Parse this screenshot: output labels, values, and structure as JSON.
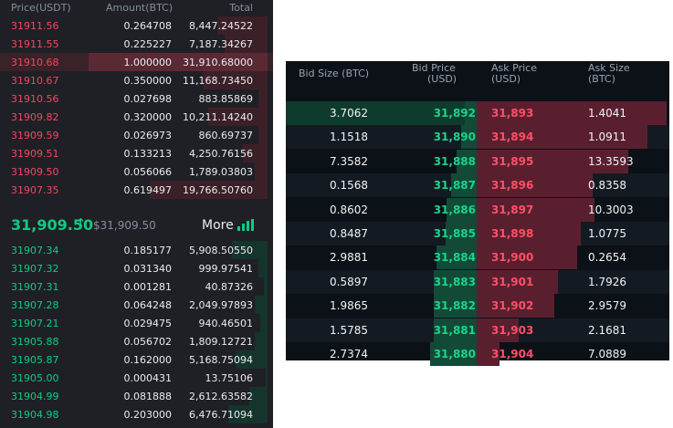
{
  "order_book": {
    "headers": {
      "price": "Price(USDT)",
      "amount": "Amount(BTC)",
      "total": "Total"
    },
    "asks": [
      {
        "price": "31911.56",
        "amount": "0.264708",
        "total": "8,447.24522",
        "depth": 0.28
      },
      {
        "price": "31911.55",
        "amount": "0.225227",
        "total": "7,187.34267",
        "depth": 0.24
      },
      {
        "price": "31910.68",
        "amount": "1.000000",
        "total": "31,910.68000",
        "depth": 1.0,
        "highlight": true
      },
      {
        "price": "31910.67",
        "amount": "0.350000",
        "total": "11,168.73450",
        "depth": 0.36
      },
      {
        "price": "31910.56",
        "amount": "0.027698",
        "total": "883.85869",
        "depth": 0.05
      },
      {
        "price": "31909.82",
        "amount": "0.320000",
        "total": "10,211.14240",
        "depth": 0.33
      },
      {
        "price": "31909.59",
        "amount": "0.026973",
        "total": "860.69737",
        "depth": 0.05
      },
      {
        "price": "31909.51",
        "amount": "0.133213",
        "total": "4,250.76156",
        "depth": 0.14
      },
      {
        "price": "31909.50",
        "amount": "0.056066",
        "total": "1,789.03803",
        "depth": 0.07
      },
      {
        "price": "31907.35",
        "amount": "0.619497",
        "total": "19,766.50760",
        "depth": 0.66
      }
    ],
    "mid": {
      "price": "31,909.50",
      "arrow": "↑",
      "usd": "$31,909.50",
      "more": "More"
    },
    "bids": [
      {
        "price": "31907.34",
        "amount": "0.185177",
        "total": "5,908.50550",
        "depth": 0.2
      },
      {
        "price": "31907.32",
        "amount": "0.031340",
        "total": "999.97541",
        "depth": 0.05
      },
      {
        "price": "31907.31",
        "amount": "0.001281",
        "total": "40.87326",
        "depth": 0.02
      },
      {
        "price": "31907.28",
        "amount": "0.064248",
        "total": "2,049.97893",
        "depth": 0.07
      },
      {
        "price": "31907.21",
        "amount": "0.029475",
        "total": "940.46501",
        "depth": 0.04
      },
      {
        "price": "31905.88",
        "amount": "0.056702",
        "total": "1,809.12721",
        "depth": 0.07
      },
      {
        "price": "31905.87",
        "amount": "0.162000",
        "total": "5,168.75094",
        "depth": 0.18
      },
      {
        "price": "31905.00",
        "amount": "0.000431",
        "total": "13.75106",
        "depth": 0.01
      },
      {
        "price": "31904.99",
        "amount": "0.081888",
        "total": "2,612.63582",
        "depth": 0.1
      },
      {
        "price": "31904.98",
        "amount": "0.203000",
        "total": "6,476.71094",
        "depth": 0.22
      }
    ]
  },
  "depth_table": {
    "headers": {
      "bid_size": "Bid Size (BTC)",
      "bid_price_1": "Bid Price",
      "bid_price_2": "(USD)",
      "ask_price_1": "Ask Price",
      "ask_price_2": "(USD)",
      "ask_size_1": "Ask Size",
      "ask_size_2": "(BTC)"
    },
    "rows": [
      {
        "bid_size": "3.7062",
        "bid_price": "31,892",
        "ask_price": "31,893",
        "ask_size": "1.4041",
        "bid_depth": 0.07,
        "ask_depth": 1.0
      },
      {
        "bid_size": "1.1518",
        "bid_price": "31,890",
        "ask_price": "31,894",
        "ask_size": "1.0911",
        "bid_depth": 0.13,
        "ask_depth": 0.9
      },
      {
        "bid_size": "7.3582",
        "bid_price": "31,888",
        "ask_price": "31,895",
        "ask_size": "13.3593",
        "bid_depth": 0.2,
        "ask_depth": 0.8
      },
      {
        "bid_size": "0.1568",
        "bid_price": "31,887",
        "ask_price": "31,896",
        "ask_size": "0.8358",
        "bid_depth": 0.29,
        "ask_depth": 0.61
      },
      {
        "bid_size": "0.8602",
        "bid_price": "31,886",
        "ask_price": "31,897",
        "ask_size": "10.3003",
        "bid_depth": 0.36,
        "ask_depth": 0.62
      },
      {
        "bid_size": "0.8487",
        "bid_price": "31,885",
        "ask_price": "31,898",
        "ask_size": "1.0775",
        "bid_depth": 0.38,
        "ask_depth": 0.55
      },
      {
        "bid_size": "2.9881",
        "bid_price": "31,884",
        "ask_price": "31,900",
        "ask_size": "0.2654",
        "bid_depth": 0.52,
        "ask_depth": 0.53
      },
      {
        "bid_size": "0.5897",
        "bid_price": "31,883",
        "ask_price": "31,901",
        "ask_size": "1.7926",
        "bid_depth": 0.57,
        "ask_depth": 0.43
      },
      {
        "bid_size": "1.9865",
        "bid_price": "31,882",
        "ask_price": "31,902",
        "ask_size": "2.9579",
        "bid_depth": 0.56,
        "ask_depth": 0.41
      },
      {
        "bid_size": "1.5785",
        "bid_price": "31,881",
        "ask_price": "31,903",
        "ask_size": "2.1681",
        "bid_depth": 0.56,
        "ask_depth": 0.22
      },
      {
        "bid_size": "2.7374",
        "bid_price": "31,880",
        "ask_price": "31,904",
        "ask_size": "7.0889",
        "bid_depth": 0.62,
        "ask_depth": 0.12
      }
    ]
  }
}
